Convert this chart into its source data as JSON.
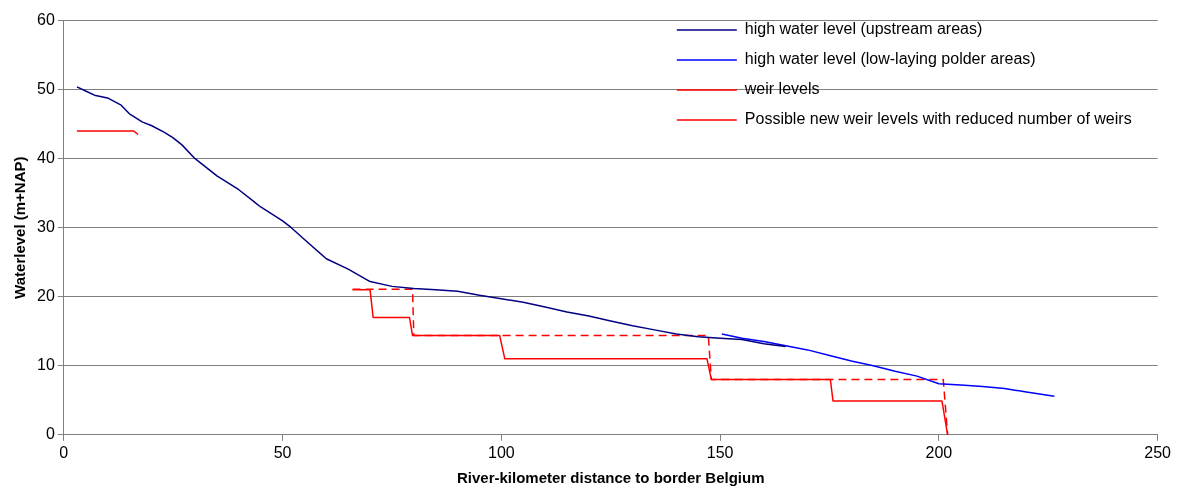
{
  "chart_data": {
    "type": "line",
    "xlabel": "River-kilometer distance to border Belgium",
    "ylabel": "Waterlevel (m+NAP)",
    "xlim": [
      0,
      250
    ],
    "xticks": [
      0,
      50,
      100,
      150,
      200,
      250
    ],
    "ylim": [
      0,
      60
    ],
    "yticks": [
      0,
      10,
      20,
      30,
      40,
      50,
      60
    ],
    "grid": "y",
    "legend": "top right",
    "marker": "none",
    "series": [
      {
        "name": "high water level (upstream areas)",
        "color": "#000080",
        "line_style": "solid",
        "x": [
          3,
          5,
          7,
          10,
          13,
          15,
          18,
          20,
          23,
          25,
          27,
          30,
          35,
          40,
          45,
          50,
          52,
          55,
          60,
          65,
          70,
          75,
          80,
          85,
          90,
          95,
          100,
          105,
          110,
          115,
          120,
          125,
          130,
          135,
          140,
          145,
          150,
          155,
          160,
          165
        ],
        "values": [
          50.4,
          49.8,
          49.2,
          48.8,
          47.8,
          46.5,
          45.3,
          44.8,
          43.8,
          43,
          42,
          40,
          37.5,
          35.5,
          33,
          31,
          30,
          28.3,
          25.5,
          24,
          22.2,
          21.5,
          21.2,
          21,
          20.8,
          20.2,
          19.7,
          19.2,
          18.5,
          17.8,
          17.2,
          16.5,
          15.8,
          15.2,
          14.6,
          14.2,
          14,
          13.8,
          13.2,
          12.8
        ]
      },
      {
        "name": "high water level (low-laying polder areas)",
        "color": "#0000ff",
        "line_style": "solid",
        "x": [
          150.4,
          155,
          160,
          165,
          170,
          175,
          180,
          185,
          190,
          195,
          200,
          205,
          210,
          215,
          220,
          226.4
        ],
        "values": [
          14.6,
          14,
          13.5,
          12.9,
          12.3,
          11.5,
          10.7,
          10,
          9.2,
          8.5,
          7.4,
          7.2,
          7,
          6.7,
          6.2,
          5.6
        ]
      },
      {
        "name": "weir levels",
        "color": "#ff0000",
        "line_style": "solid",
        "x": [
          3,
          16,
          17,
          null,
          66,
          70,
          70.7,
          79,
          79.7,
          99.6,
          100.8,
          147,
          148,
          175.2,
          175.8,
          200.7,
          202
        ],
        "values": [
          44,
          44,
          43.5,
          null,
          21,
          21,
          17,
          17,
          14.4,
          14.4,
          11,
          11,
          8,
          8,
          4.9,
          4.9,
          0
        ]
      },
      {
        "name": "Possible new weir levels with reduced number of weirs",
        "color": "#ff0000",
        "line_style": "dashed",
        "x": [
          66,
          79.7,
          80,
          147.3,
          148,
          201,
          202
        ],
        "values": [
          21.1,
          21.1,
          14.4,
          14.4,
          8,
          8,
          0
        ]
      }
    ]
  }
}
